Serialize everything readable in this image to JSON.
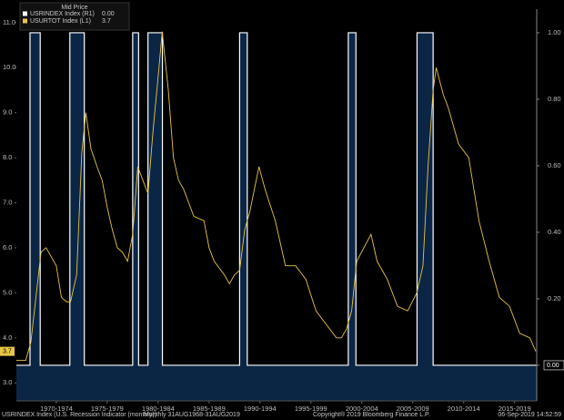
{
  "chart_data": {
    "type": "line",
    "legend_title": "Mid Price",
    "xlim": [
      1968.58,
      2019.67
    ],
    "xticks": [
      {
        "value": 1972.5,
        "label": "1970-1974"
      },
      {
        "value": 1977.5,
        "label": "1975-1979"
      },
      {
        "value": 1982.5,
        "label": "1980-1984"
      },
      {
        "value": 1987.5,
        "label": "1985-1989"
      },
      {
        "value": 1992.5,
        "label": "1990-1994"
      },
      {
        "value": 1997.5,
        "label": "1995-1999"
      },
      {
        "value": 2002.5,
        "label": "2000-2004"
      },
      {
        "value": 2007.5,
        "label": "2005-2009"
      },
      {
        "value": 2012.5,
        "label": "2010-2014"
      },
      {
        "value": 2017.5,
        "label": "2015-2019"
      }
    ],
    "ylim": [
      2.6,
      11.3
    ],
    "yticks": [
      {
        "value": 3,
        "label": "3.0"
      },
      {
        "value": 4,
        "label": "4.0"
      },
      {
        "value": 5,
        "label": "5.0"
      },
      {
        "value": 6,
        "label": "6.0"
      },
      {
        "value": 7,
        "label": "7.0"
      },
      {
        "value": 8,
        "label": "8.0"
      },
      {
        "value": 9,
        "label": "9.0"
      },
      {
        "value": 10,
        "label": "10.0"
      },
      {
        "value": 11,
        "label": "11.0"
      }
    ],
    "y2lim": [
      -0.107,
      1.071
    ],
    "y2ticks": [
      {
        "value": 0,
        "label": "0.00"
      },
      {
        "value": 0.2,
        "label": "0.20"
      },
      {
        "value": 0.4,
        "label": "0.40"
      },
      {
        "value": 0.6,
        "label": "0.60"
      },
      {
        "value": 0.8,
        "label": "0.80"
      },
      {
        "value": 1,
        "label": "1.00"
      }
    ],
    "series": [
      {
        "name": "USRINDEX Index (R1)",
        "last_label": "0.00",
        "color": "#ffffff",
        "fill": "#0b2545",
        "axis": "y2",
        "x": [
          1968.58,
          1969.92,
          1969.92,
          1970.92,
          1970.92,
          1973.83,
          1973.83,
          1975.25,
          1975.25,
          1980.0,
          1980.0,
          1980.58,
          1980.58,
          1981.5,
          1981.5,
          1982.92,
          1982.92,
          1990.5,
          1990.5,
          1991.25,
          1991.25,
          2001.17,
          2001.17,
          2001.92,
          2001.92,
          2007.92,
          2007.92,
          2009.5,
          2009.5,
          2019.67
        ],
        "values": [
          0,
          0,
          1,
          1,
          0,
          0,
          1,
          1,
          0,
          0,
          1,
          1,
          0,
          0,
          1,
          1,
          0,
          0,
          1,
          1,
          0,
          0,
          1,
          1,
          0,
          0,
          1,
          1,
          0,
          0
        ]
      },
      {
        "name": "USURTOT Index (L1)",
        "last_label": "3.7",
        "color": "#e8c547",
        "axis": "y",
        "x": [
          1968.58,
          1969.5,
          1970.0,
          1970.5,
          1971.0,
          1971.5,
          1972.0,
          1972.5,
          1973.0,
          1973.5,
          1973.9,
          1974.5,
          1975.0,
          1975.4,
          1975.9,
          1976.5,
          1977.0,
          1977.5,
          1978.0,
          1978.5,
          1979.0,
          1979.5,
          1980.0,
          1980.5,
          1981.0,
          1981.5,
          1982.0,
          1982.5,
          1982.9,
          1983.5,
          1984.0,
          1984.5,
          1985.0,
          1986.0,
          1987.0,
          1987.5,
          1988.0,
          1989.0,
          1989.5,
          1990.0,
          1990.5,
          1991.0,
          1991.5,
          1992.4,
          1993.0,
          1994.0,
          1995.0,
          1996.0,
          1997.0,
          1998.0,
          1999.0,
          2000.0,
          2000.5,
          2001.0,
          2001.5,
          2002.0,
          2003.4,
          2004.0,
          2005.0,
          2006.0,
          2007.0,
          2007.9,
          2008.5,
          2009.0,
          2009.5,
          2009.8,
          2010.5,
          2011.0,
          2012.0,
          2013.0,
          2014.0,
          2015.0,
          2016.0,
          2017.0,
          2018.0,
          2019.0,
          2019.58
        ],
        "values": [
          3.5,
          3.5,
          3.9,
          4.9,
          5.9,
          6.0,
          5.8,
          5.6,
          4.9,
          4.8,
          4.8,
          5.4,
          8.1,
          9.0,
          8.2,
          7.8,
          7.5,
          6.9,
          6.4,
          6.0,
          5.9,
          5.7,
          6.3,
          7.8,
          7.5,
          7.2,
          8.6,
          9.8,
          10.8,
          9.5,
          8.0,
          7.5,
          7.3,
          6.7,
          6.6,
          6.0,
          5.7,
          5.4,
          5.2,
          5.4,
          5.5,
          6.4,
          6.8,
          7.8,
          7.3,
          6.6,
          5.6,
          5.6,
          5.3,
          4.6,
          4.3,
          4.0,
          4.0,
          4.2,
          4.6,
          5.7,
          6.3,
          5.7,
          5.3,
          4.7,
          4.6,
          5.0,
          5.6,
          7.8,
          9.5,
          10.0,
          9.4,
          9.1,
          8.3,
          8.0,
          6.6,
          5.7,
          4.9,
          4.7,
          4.1,
          4.0,
          3.7
        ]
      }
    ],
    "footer_left": "USRINDEX Index (U.S. Recession Indicator (monthly))",
    "footer_range": "Monthly 31AUG1968-31AUG2019",
    "footer_copyright": "Copyright® 2019 Bloomberg Finance L.P.",
    "footer_date": "06-Sep-2019 14:52:59"
  }
}
